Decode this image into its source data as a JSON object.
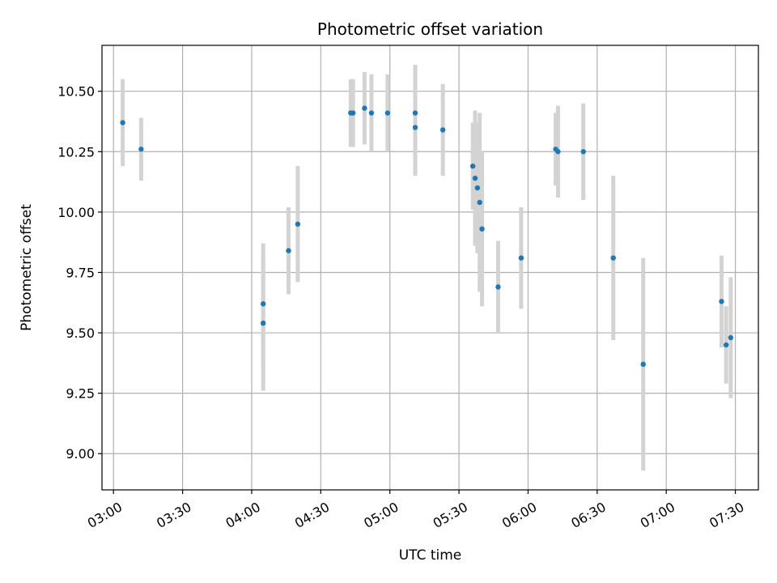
{
  "chart_data": {
    "type": "scatter",
    "title": "Photometric offset variation",
    "xlabel": "UTC time",
    "ylabel": "Photometric offset",
    "grid": true,
    "marker_color": "#1f77b4",
    "errorbar_color": "#d3d3d3",
    "x_axis": {
      "type": "time",
      "range": [
        "02:55",
        "07:40"
      ],
      "ticks": [
        "03:00",
        "03:30",
        "04:00",
        "04:30",
        "05:00",
        "05:30",
        "06:00",
        "06:30",
        "07:00",
        "07:30"
      ]
    },
    "y_axis": {
      "range": [
        8.85,
        10.69
      ],
      "ticks": [
        "9.00",
        "9.25",
        "9.50",
        "9.75",
        "10.00",
        "10.25",
        "10.50"
      ]
    },
    "points": [
      {
        "x": "03:04",
        "y": 10.37,
        "err": 0.18
      },
      {
        "x": "03:12",
        "y": 10.26,
        "err": 0.13
      },
      {
        "x": "04:05",
        "y": 9.62,
        "err": 0.25
      },
      {
        "x": "04:05",
        "y": 9.54,
        "err": 0.28
      },
      {
        "x": "04:16",
        "y": 9.84,
        "err": 0.18
      },
      {
        "x": "04:20",
        "y": 9.95,
        "err": 0.24
      },
      {
        "x": "04:43",
        "y": 10.41,
        "err": 0.14
      },
      {
        "x": "04:44",
        "y": 10.41,
        "err": 0.14
      },
      {
        "x": "04:49",
        "y": 10.43,
        "err": 0.15
      },
      {
        "x": "04:52",
        "y": 10.41,
        "err": 0.16
      },
      {
        "x": "04:59",
        "y": 10.41,
        "err": 0.16
      },
      {
        "x": "05:11",
        "y": 10.41,
        "err": 0.2
      },
      {
        "x": "05:11",
        "y": 10.35,
        "err": 0.2
      },
      {
        "x": "05:23",
        "y": 10.34,
        "err": 0.19
      },
      {
        "x": "05:36",
        "y": 10.19,
        "err": 0.18
      },
      {
        "x": "05:37",
        "y": 10.14,
        "err": 0.28
      },
      {
        "x": "05:38",
        "y": 10.1,
        "err": 0.27
      },
      {
        "x": "05:39",
        "y": 10.04,
        "err": 0.37
      },
      {
        "x": "05:40",
        "y": 9.93,
        "err": 0.32
      },
      {
        "x": "05:47",
        "y": 9.69,
        "err": 0.19
      },
      {
        "x": "05:57",
        "y": 9.81,
        "err": 0.21
      },
      {
        "x": "06:12",
        "y": 10.26,
        "err": 0.15
      },
      {
        "x": "06:13",
        "y": 10.25,
        "err": 0.19
      },
      {
        "x": "06:24",
        "y": 10.25,
        "err": 0.2
      },
      {
        "x": "06:37",
        "y": 9.81,
        "err": 0.34
      },
      {
        "x": "06:50",
        "y": 9.37,
        "err": 0.44
      },
      {
        "x": "07:24",
        "y": 9.63,
        "err": 0.19
      },
      {
        "x": "07:26",
        "y": 9.45,
        "err": 0.16
      },
      {
        "x": "07:28",
        "y": 9.48,
        "err": 0.25
      }
    ]
  }
}
